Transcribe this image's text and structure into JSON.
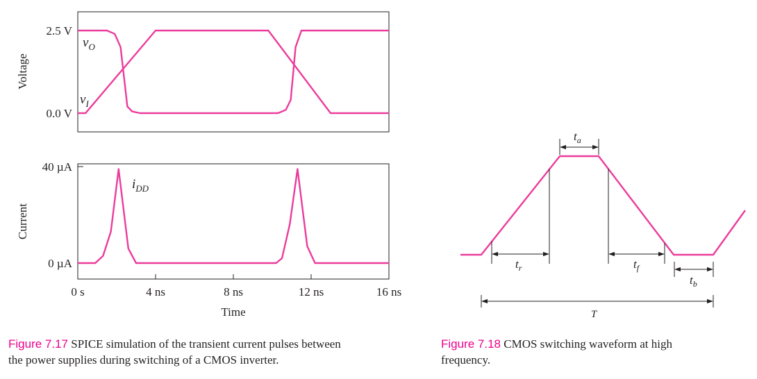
{
  "colors": {
    "curve": "#ec3b9c",
    "ink": "#231f20",
    "caption_label": "#ec008c"
  },
  "chart_data": [
    {
      "type": "line",
      "ylabel": "Voltage",
      "yticks": [
        {
          "value": 2.5,
          "label": "2.5 V"
        },
        {
          "value": 0.0,
          "label": "0.0 V"
        }
      ],
      "ylim": [
        0,
        2.5
      ],
      "xlim": [
        0,
        16
      ],
      "grid": false,
      "series": [
        {
          "name": "vO",
          "label": "v",
          "sub": "O",
          "x": [
            0,
            1.5,
            1.9,
            2.2,
            2.55,
            2.8,
            3.2,
            10.3,
            10.7,
            10.95,
            11.2,
            11.5,
            16
          ],
          "y": [
            2.5,
            2.5,
            2.4,
            2.0,
            0.2,
            0.05,
            0.0,
            0.0,
            0.1,
            0.4,
            2.0,
            2.5,
            2.5
          ]
        },
        {
          "name": "vI",
          "label": "v",
          "sub": "I",
          "x": [
            0,
            0.4,
            4.0,
            9.8,
            13.0,
            16
          ],
          "y": [
            0.0,
            0.0,
            2.5,
            2.5,
            0.0,
            0.0
          ]
        }
      ]
    },
    {
      "type": "line",
      "ylabel": "Current",
      "xlabel": "Time",
      "xticks": [
        {
          "value": 0,
          "label": "0 s"
        },
        {
          "value": 4,
          "label": "4 ns"
        },
        {
          "value": 8,
          "label": "8 ns"
        },
        {
          "value": 12,
          "label": "12 ns"
        },
        {
          "value": 16,
          "label": "16 ns"
        }
      ],
      "yticks": [
        {
          "value": 40,
          "label": "40 µA"
        },
        {
          "value": 0,
          "label": "0 µA"
        }
      ],
      "ylim": [
        0,
        40
      ],
      "xlim": [
        0,
        16
      ],
      "grid": false,
      "series": [
        {
          "name": "iDD",
          "label": "i",
          "sub": "DD",
          "x": [
            0,
            0.9,
            1.3,
            1.7,
            2.1,
            2.6,
            3.0,
            10.2,
            10.5,
            10.9,
            11.3,
            11.8,
            12.2,
            16
          ],
          "y": [
            0,
            0,
            3,
            13,
            39,
            6,
            0,
            0,
            2,
            16,
            39,
            7,
            0,
            0
          ]
        }
      ]
    },
    {
      "type": "line",
      "annotations": [
        {
          "label": "t",
          "sub": "a"
        },
        {
          "label": "t",
          "sub": "r"
        },
        {
          "label": "t",
          "sub": "f"
        },
        {
          "label": "t",
          "sub": "b"
        },
        {
          "label": "T",
          "sub": ""
        }
      ]
    }
  ],
  "captions": [
    {
      "label": "Figure 7.17",
      "line1": " SPICE simulation of the transient current pulses between",
      "line2": "the power supplies during switching of a CMOS inverter."
    },
    {
      "label": "Figure 7.18",
      "line1": " CMOS switching waveform at high",
      "line2": "frequency."
    }
  ]
}
